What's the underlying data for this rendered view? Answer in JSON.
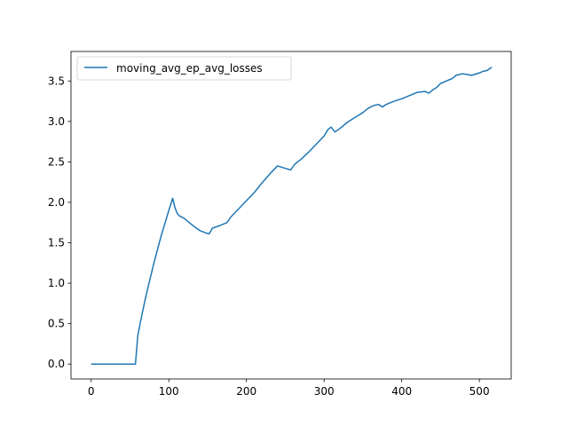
{
  "chart_data": {
    "type": "line",
    "title": "",
    "xlabel": "",
    "ylabel": "",
    "xlim": [
      -26,
      541
    ],
    "ylim": [
      -0.184,
      3.865
    ],
    "xticks": [
      0,
      100,
      200,
      300,
      400,
      500
    ],
    "yticks": [
      0.0,
      0.5,
      1.0,
      1.5,
      2.0,
      2.5,
      3.0,
      3.5
    ],
    "xtick_labels": [
      "0",
      "100",
      "200",
      "300",
      "400",
      "500"
    ],
    "ytick_labels": [
      "0.0",
      "0.5",
      "1.0",
      "1.5",
      "2.0",
      "2.5",
      "3.0",
      "3.5"
    ],
    "grid": false,
    "legend_position": "upper-left",
    "series": [
      {
        "name": "moving_avg_ep_avg_losses",
        "color": "#1f77b4",
        "x": [
          0,
          10,
          20,
          30,
          40,
          50,
          57,
          60,
          63,
          70,
          80,
          90,
          100,
          105,
          108,
          111,
          114,
          120,
          130,
          140,
          148,
          152,
          156,
          165,
          175,
          180,
          190,
          200,
          210,
          220,
          230,
          240,
          250,
          257,
          262,
          270,
          280,
          290,
          300,
          305,
          309,
          314,
          320,
          330,
          340,
          350,
          355,
          360,
          365,
          370,
          375,
          380,
          390,
          400,
          410,
          420,
          430,
          435,
          440,
          445,
          450,
          455,
          460,
          465,
          470,
          478,
          485,
          490,
          500,
          505,
          510,
          516
        ],
        "y": [
          0.0,
          0.0,
          0.0,
          0.0,
          0.0,
          0.0,
          0.0,
          0.35,
          0.5,
          0.82,
          1.22,
          1.58,
          1.9,
          2.05,
          1.93,
          1.86,
          1.83,
          1.8,
          1.72,
          1.65,
          1.62,
          1.61,
          1.68,
          1.71,
          1.75,
          1.82,
          1.92,
          2.02,
          2.12,
          2.24,
          2.35,
          2.45,
          2.42,
          2.4,
          2.47,
          2.53,
          2.62,
          2.72,
          2.82,
          2.9,
          2.93,
          2.87,
          2.91,
          2.99,
          3.05,
          3.11,
          3.15,
          3.18,
          3.2,
          3.21,
          3.18,
          3.21,
          3.25,
          3.28,
          3.32,
          3.36,
          3.37,
          3.35,
          3.39,
          3.42,
          3.47,
          3.49,
          3.51,
          3.53,
          3.57,
          3.59,
          3.58,
          3.57,
          3.6,
          3.62,
          3.63,
          3.67
        ]
      }
    ]
  }
}
